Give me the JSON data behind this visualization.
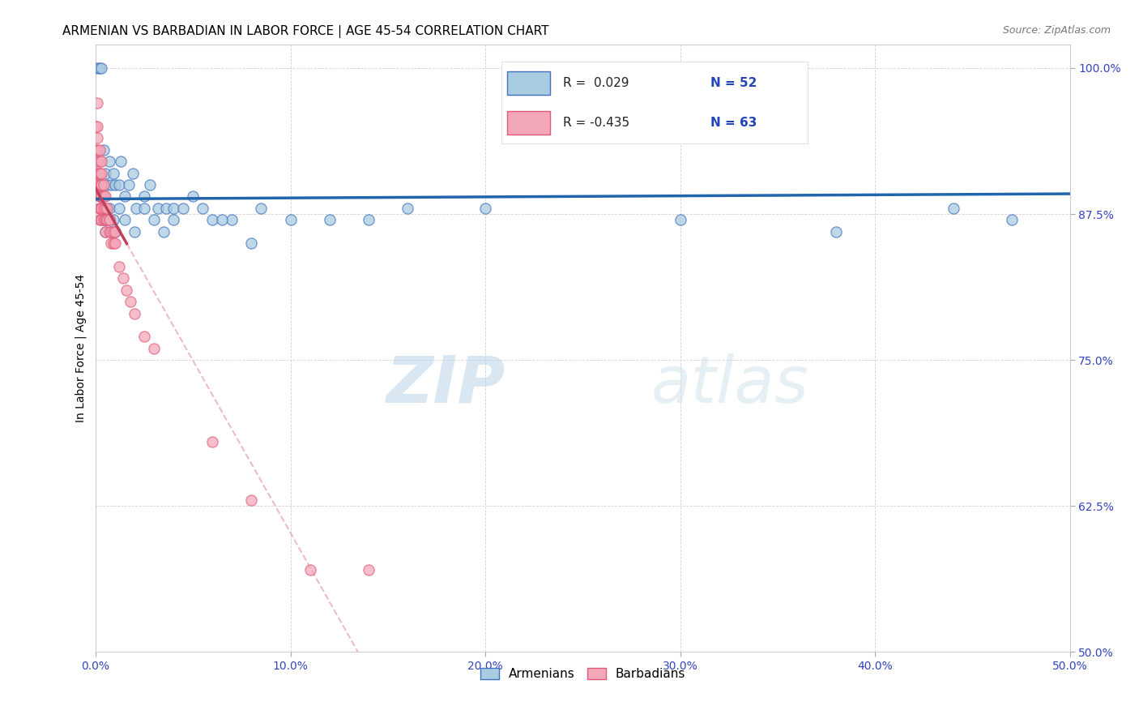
{
  "title": "ARMENIAN VS BARBADIAN IN LABOR FORCE | AGE 45-54 CORRELATION CHART",
  "source": "Source: ZipAtlas.com",
  "ylabel": "In Labor Force | Age 45-54",
  "xlim": [
    0.0,
    0.5
  ],
  "ylim": [
    0.5,
    1.02
  ],
  "xticks": [
    0.0,
    0.1,
    0.2,
    0.3,
    0.4,
    0.5
  ],
  "xticklabels": [
    "0.0%",
    "10.0%",
    "20.0%",
    "30.0%",
    "40.0%",
    "50.0%"
  ],
  "yticks": [
    0.5,
    0.625,
    0.75,
    0.875,
    1.0
  ],
  "yticklabels": [
    "50.0%",
    "62.5%",
    "75.0%",
    "87.5%",
    "100.0%"
  ],
  "legend_armenian_R": " 0.029",
  "legend_armenian_N": "52",
  "legend_barbadian_R": "-0.435",
  "legend_barbadian_N": "63",
  "watermark_zip": "ZIP",
  "watermark_atlas": "atlas",
  "blue_fill": "#a8cce0",
  "blue_edge": "#4472c4",
  "pink_fill": "#f4a7b9",
  "pink_edge": "#e05c7a",
  "blue_line_color": "#2166ac",
  "pink_line_color": "#c0405a",
  "armenian_x": [
    0.001,
    0.002,
    0.003,
    0.004,
    0.005,
    0.006,
    0.007,
    0.008,
    0.009,
    0.01,
    0.012,
    0.013,
    0.015,
    0.017,
    0.019,
    0.021,
    0.025,
    0.028,
    0.032,
    0.036,
    0.04,
    0.045,
    0.05,
    0.06,
    0.07,
    0.085,
    0.1,
    0.12,
    0.14,
    0.16,
    0.004,
    0.005,
    0.006,
    0.007,
    0.008,
    0.009,
    0.01,
    0.012,
    0.015,
    0.02,
    0.025,
    0.03,
    0.035,
    0.04,
    0.055,
    0.065,
    0.08,
    0.2,
    0.3,
    0.38,
    0.44,
    0.47
  ],
  "armenian_y": [
    1.0,
    1.0,
    1.0,
    0.93,
    0.91,
    0.9,
    0.92,
    0.9,
    0.91,
    0.9,
    0.9,
    0.92,
    0.89,
    0.9,
    0.91,
    0.88,
    0.89,
    0.9,
    0.88,
    0.88,
    0.88,
    0.88,
    0.89,
    0.87,
    0.87,
    0.88,
    0.87,
    0.87,
    0.87,
    0.88,
    0.87,
    0.86,
    0.87,
    0.88,
    0.86,
    0.87,
    0.86,
    0.88,
    0.87,
    0.86,
    0.88,
    0.87,
    0.86,
    0.87,
    0.88,
    0.87,
    0.85,
    0.88,
    0.87,
    0.86,
    0.88,
    0.87
  ],
  "barbadian_x": [
    0.0,
    0.0,
    0.0,
    0.001,
    0.001,
    0.001,
    0.001,
    0.001,
    0.001,
    0.001,
    0.002,
    0.002,
    0.002,
    0.002,
    0.002,
    0.002,
    0.002,
    0.002,
    0.002,
    0.002,
    0.003,
    0.003,
    0.003,
    0.003,
    0.003,
    0.003,
    0.003,
    0.003,
    0.003,
    0.003,
    0.004,
    0.004,
    0.004,
    0.004,
    0.004,
    0.005,
    0.005,
    0.005,
    0.005,
    0.005,
    0.006,
    0.006,
    0.006,
    0.007,
    0.007,
    0.007,
    0.008,
    0.008,
    0.009,
    0.009,
    0.01,
    0.01,
    0.012,
    0.014,
    0.016,
    0.018,
    0.02,
    0.025,
    0.03,
    0.06,
    0.08,
    0.11,
    0.14
  ],
  "barbadian_y": [
    0.95,
    0.93,
    0.91,
    0.97,
    0.95,
    0.94,
    0.93,
    0.92,
    0.91,
    0.9,
    0.93,
    0.92,
    0.91,
    0.91,
    0.9,
    0.89,
    0.89,
    0.88,
    0.88,
    0.87,
    0.92,
    0.91,
    0.9,
    0.9,
    0.89,
    0.89,
    0.88,
    0.88,
    0.87,
    0.87,
    0.9,
    0.89,
    0.89,
    0.88,
    0.87,
    0.89,
    0.88,
    0.87,
    0.87,
    0.86,
    0.88,
    0.87,
    0.87,
    0.87,
    0.87,
    0.86,
    0.86,
    0.85,
    0.86,
    0.85,
    0.86,
    0.85,
    0.83,
    0.82,
    0.81,
    0.8,
    0.79,
    0.77,
    0.76,
    0.68,
    0.63,
    0.57,
    0.57
  ],
  "title_fontsize": 11,
  "axis_label_fontsize": 10,
  "tick_fontsize": 10,
  "legend_fontsize": 11
}
